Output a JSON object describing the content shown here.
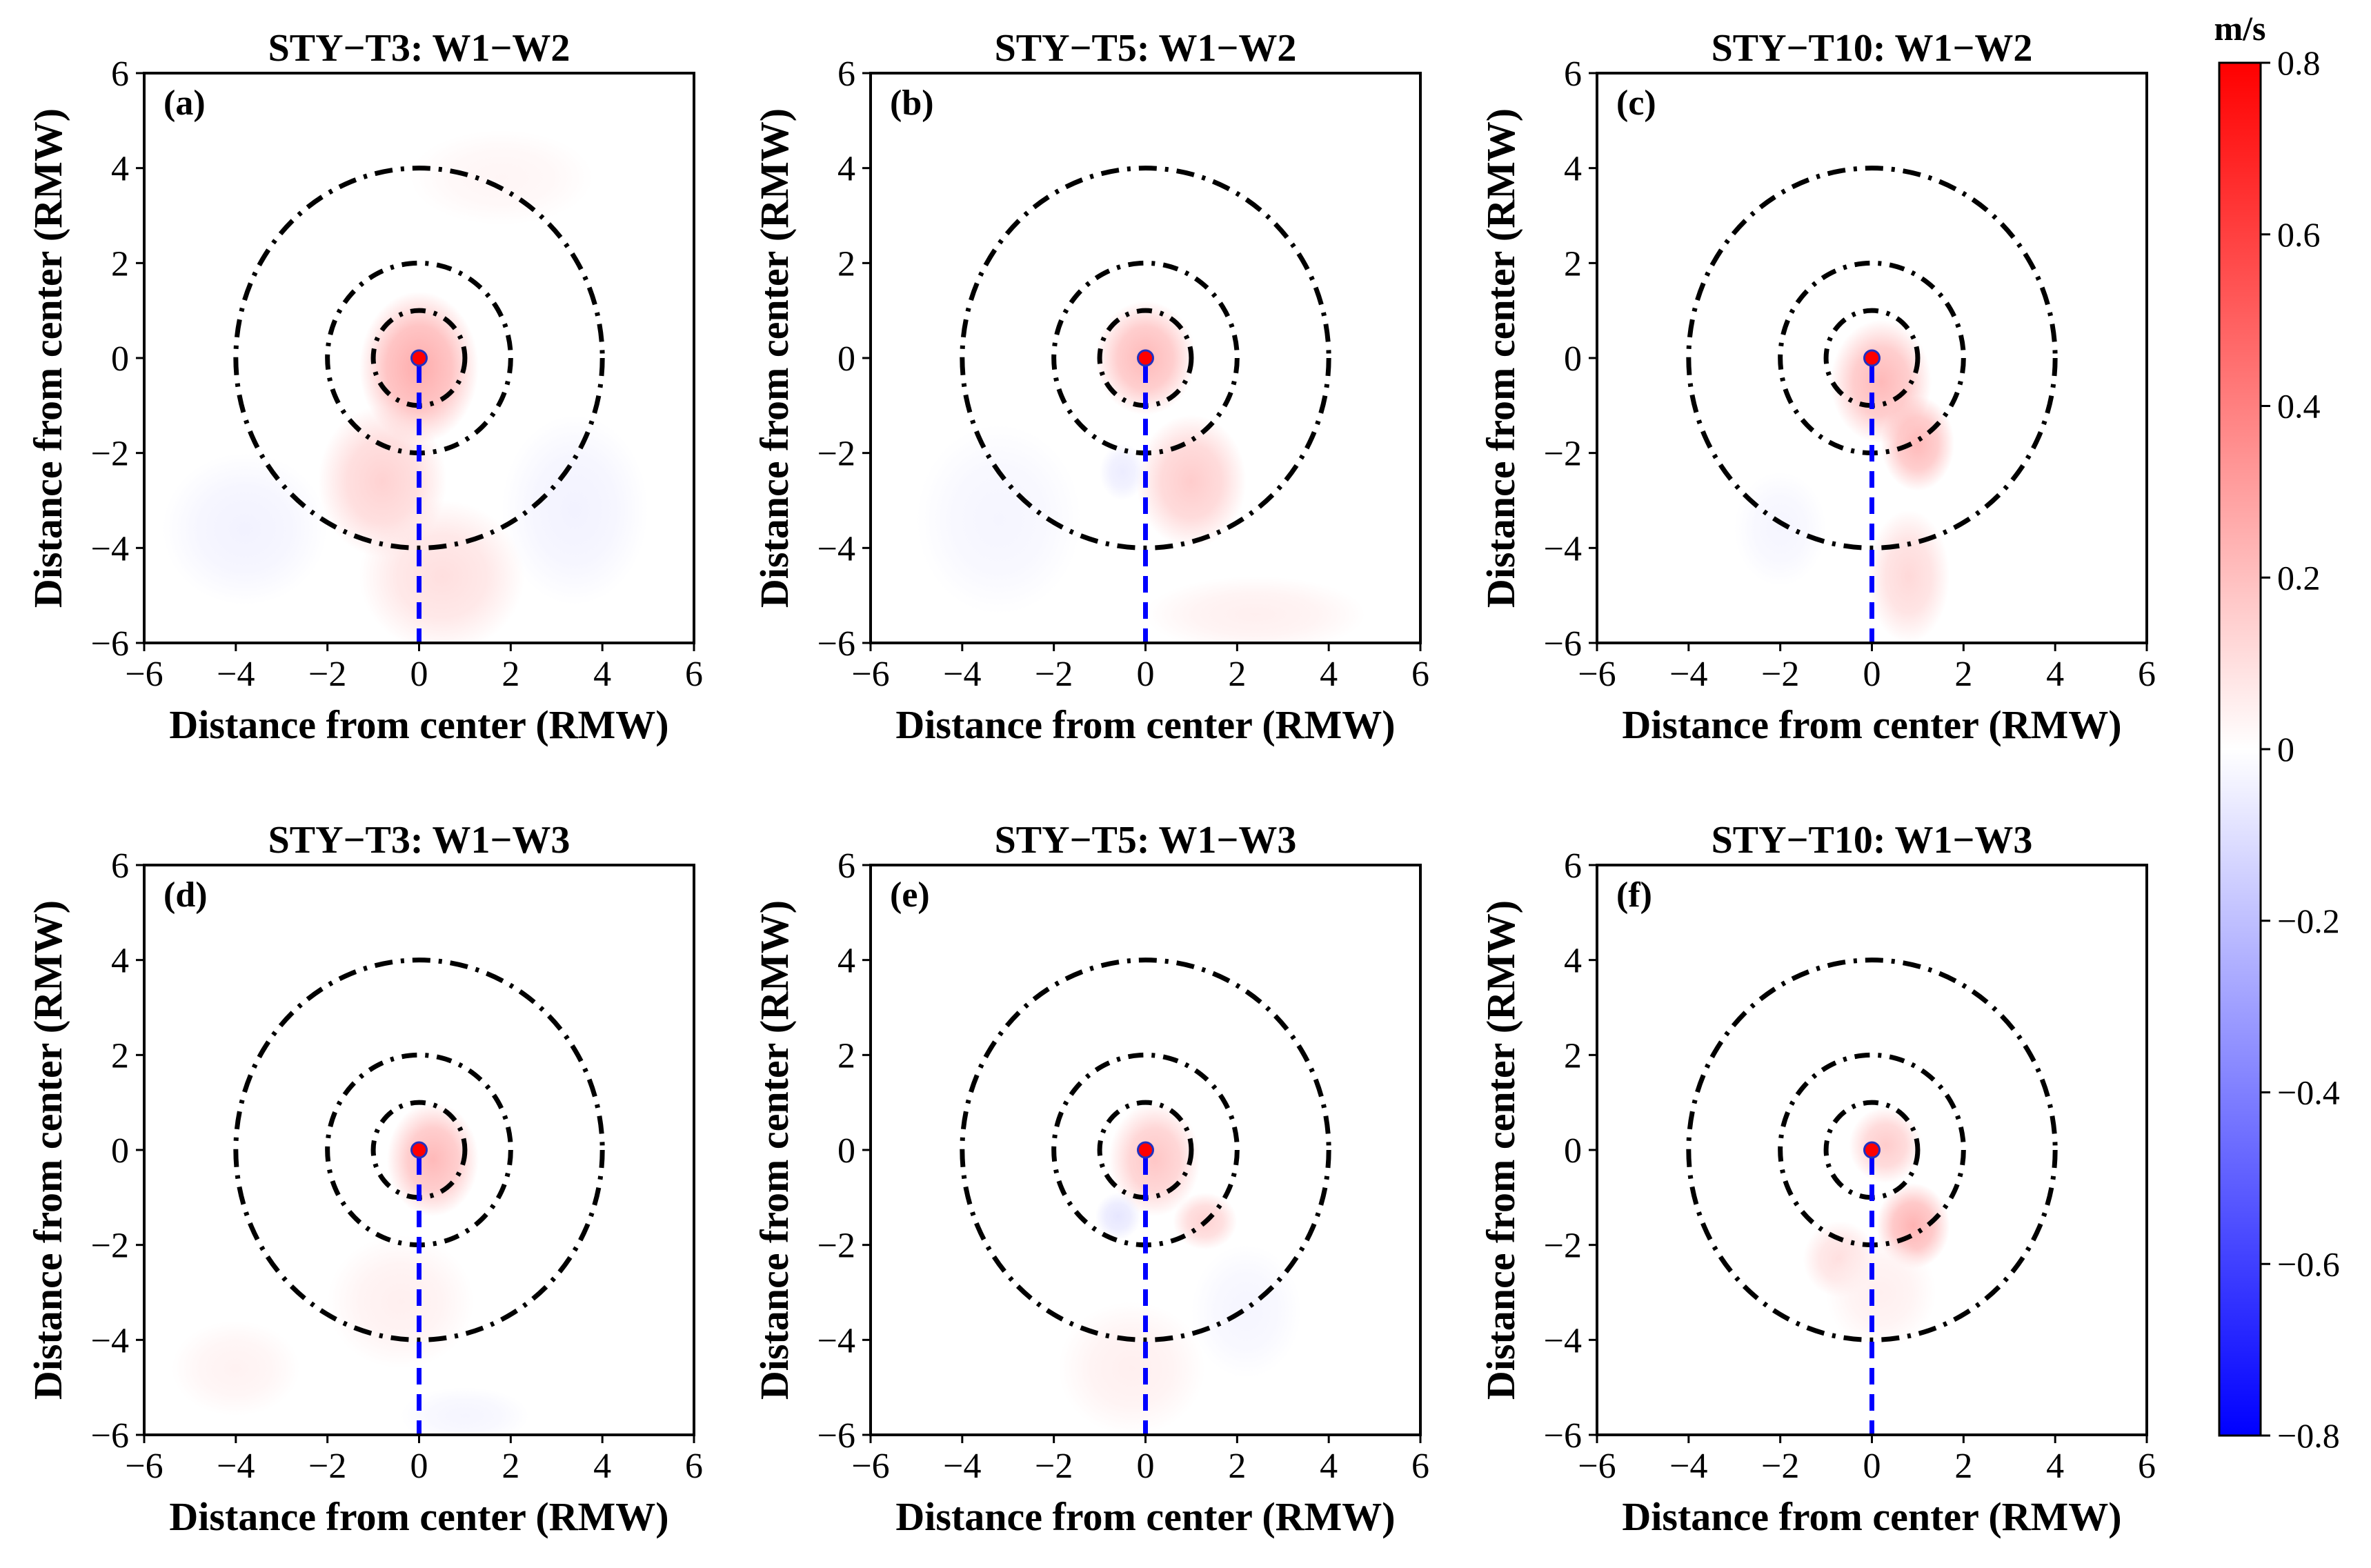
{
  "figure": {
    "colorbar": {
      "title": "m/s",
      "min": -0.8,
      "max": 0.8,
      "ticks": [
        0.8,
        0.6,
        0.4,
        0.2,
        0,
        -0.2,
        -0.4,
        -0.6,
        -0.8
      ],
      "tick_labels": [
        "0.8",
        "0.6",
        "0.4",
        "0.2",
        "0",
        "−0.2",
        "−0.4",
        "−0.6",
        "−0.8"
      ],
      "colors": {
        "max": "#ff0000",
        "mid": "#ffffff",
        "min": "#0000ff"
      }
    },
    "ring_color": "#000000",
    "section_line_color": "#0000ff",
    "center_marker_color": "#ff0000"
  },
  "chart_data": [
    {
      "type": "heatmap",
      "panel": "(a)",
      "title": "STY−T3: W1−W2",
      "xlabel": "Distance from center (RMW)",
      "ylabel": "Distance from center (RMW)",
      "xlim": [
        -6,
        6
      ],
      "ylim": [
        -6,
        6
      ],
      "xticks": [
        -6,
        -4,
        -2,
        0,
        2,
        4,
        6
      ],
      "yticks": [
        -6,
        -4,
        -2,
        0,
        2,
        4,
        6
      ],
      "xtick_labels": [
        "−6",
        "−4",
        "−2",
        "0",
        "2",
        "4",
        "6"
      ],
      "ytick_labels": [
        "−6",
        "−4",
        "−2",
        "0",
        "2",
        "4",
        "6"
      ],
      "rings_rmw": [
        1,
        2,
        4
      ],
      "center": [
        0,
        0
      ],
      "section_line": {
        "x": 0,
        "y_from": 0,
        "y_to": -6
      },
      "features": [
        {
          "cx": 0.0,
          "cy": -0.2,
          "sx": 1.3,
          "sy": 1.6,
          "value": 0.26
        },
        {
          "cx": -0.8,
          "cy": -2.6,
          "sx": 1.4,
          "sy": 1.6,
          "value": 0.14
        },
        {
          "cx": 0.5,
          "cy": -4.6,
          "sx": 1.8,
          "sy": 1.6,
          "value": 0.1
        },
        {
          "cx": -3.8,
          "cy": -3.6,
          "sx": 1.8,
          "sy": 1.6,
          "value": -0.04
        },
        {
          "cx": 3.4,
          "cy": -3.2,
          "sx": 1.6,
          "sy": 2.0,
          "value": -0.04
        },
        {
          "cx": 1.8,
          "cy": 3.8,
          "sx": 2.0,
          "sy": 1.0,
          "value": 0.03
        }
      ]
    },
    {
      "type": "heatmap",
      "panel": "(b)",
      "title": "STY−T5: W1−W2",
      "xlabel": "Distance from center (RMW)",
      "ylabel": "Distance from center (RMW)",
      "xlim": [
        -6,
        6
      ],
      "ylim": [
        -6,
        6
      ],
      "xticks": [
        -6,
        -4,
        -2,
        0,
        2,
        4,
        6
      ],
      "yticks": [
        -6,
        -4,
        -2,
        0,
        2,
        4,
        6
      ],
      "xtick_labels": [
        "−6",
        "−4",
        "−2",
        "0",
        "2",
        "4",
        "6"
      ],
      "ytick_labels": [
        "−6",
        "−4",
        "−2",
        "0",
        "2",
        "4",
        "6"
      ],
      "rings_rmw": [
        1,
        2,
        4
      ],
      "center": [
        0,
        0
      ],
      "section_line": {
        "x": 0,
        "y_from": 0,
        "y_to": -6
      },
      "features": [
        {
          "cx": 0.0,
          "cy": 0.0,
          "sx": 1.1,
          "sy": 1.2,
          "value": 0.22
        },
        {
          "cx": 1.0,
          "cy": -2.6,
          "sx": 1.2,
          "sy": 1.4,
          "value": 0.16
        },
        {
          "cx": -0.5,
          "cy": -2.4,
          "sx": 0.5,
          "sy": 0.6,
          "value": -0.06
        },
        {
          "cx": -3.2,
          "cy": -3.4,
          "sx": 1.8,
          "sy": 2.0,
          "value": -0.03
        },
        {
          "cx": 2.4,
          "cy": -5.4,
          "sx": 2.4,
          "sy": 0.8,
          "value": 0.05
        }
      ]
    },
    {
      "type": "heatmap",
      "panel": "(c)",
      "title": "STY−T10: W1−W2",
      "xlabel": "Distance from center (RMW)",
      "ylabel": "Distance from center (RMW)",
      "xlim": [
        -6,
        6
      ],
      "ylim": [
        -6,
        6
      ],
      "xticks": [
        -6,
        -4,
        -2,
        0,
        2,
        4,
        6
      ],
      "yticks": [
        -6,
        -4,
        -2,
        0,
        2,
        4,
        6
      ],
      "xtick_labels": [
        "−6",
        "−4",
        "−2",
        "0",
        "2",
        "4",
        "6"
      ],
      "ytick_labels": [
        "−6",
        "−4",
        "−2",
        "0",
        "2",
        "4",
        "6"
      ],
      "rings_rmw": [
        1,
        2,
        4
      ],
      "center": [
        0,
        0
      ],
      "section_line": {
        "x": 0,
        "y_from": 0,
        "y_to": -6
      },
      "features": [
        {
          "cx": 0.2,
          "cy": -0.5,
          "sx": 1.1,
          "sy": 1.3,
          "value": 0.22
        },
        {
          "cx": 1.0,
          "cy": -1.8,
          "sx": 0.8,
          "sy": 1.0,
          "value": 0.22
        },
        {
          "cx": 0.8,
          "cy": -4.6,
          "sx": 0.9,
          "sy": 1.4,
          "value": 0.12
        },
        {
          "cx": -2.0,
          "cy": -3.6,
          "sx": 1.0,
          "sy": 1.2,
          "value": -0.03
        }
      ]
    },
    {
      "type": "heatmap",
      "panel": "(d)",
      "title": "STY−T3: W1−W3",
      "xlabel": "Distance from center (RMW)",
      "ylabel": "Distance from center (RMW)",
      "xlim": [
        -6,
        6
      ],
      "ylim": [
        -6,
        6
      ],
      "xticks": [
        -6,
        -4,
        -2,
        0,
        2,
        4,
        6
      ],
      "yticks": [
        -6,
        -4,
        -2,
        0,
        2,
        4,
        6
      ],
      "xtick_labels": [
        "−6",
        "−4",
        "−2",
        "0",
        "2",
        "4",
        "6"
      ],
      "ytick_labels": [
        "−6",
        "−4",
        "−2",
        "0",
        "2",
        "4",
        "6"
      ],
      "rings_rmw": [
        1,
        2,
        4
      ],
      "center": [
        0,
        0
      ],
      "section_line": {
        "x": 0,
        "y_from": 0,
        "y_to": -6
      },
      "features": [
        {
          "cx": 0.3,
          "cy": -0.2,
          "sx": 1.0,
          "sy": 1.2,
          "value": 0.22
        },
        {
          "cx": -0.4,
          "cy": -3.2,
          "sx": 1.6,
          "sy": 1.4,
          "value": 0.05
        },
        {
          "cx": -4.0,
          "cy": -4.6,
          "sx": 1.4,
          "sy": 1.0,
          "value": 0.04
        },
        {
          "cx": 1.0,
          "cy": -5.6,
          "sx": 1.4,
          "sy": 0.6,
          "value": -0.03
        }
      ]
    },
    {
      "type": "heatmap",
      "panel": "(e)",
      "title": "STY−T5: W1−W3",
      "xlabel": "Distance from center (RMW)",
      "ylabel": "Distance from center (RMW)",
      "xlim": [
        -6,
        6
      ],
      "ylim": [
        -6,
        6
      ],
      "xticks": [
        -6,
        -4,
        -2,
        0,
        2,
        4,
        6
      ],
      "yticks": [
        -6,
        -4,
        -2,
        0,
        2,
        4,
        6
      ],
      "xtick_labels": [
        "−6",
        "−4",
        "−2",
        "0",
        "2",
        "4",
        "6"
      ],
      "ytick_labels": [
        "−6",
        "−4",
        "−2",
        "0",
        "2",
        "4",
        "6"
      ],
      "rings_rmw": [
        1,
        2,
        4
      ],
      "center": [
        0,
        0
      ],
      "section_line": {
        "x": 0,
        "y_from": 0,
        "y_to": -6
      },
      "features": [
        {
          "cx": 0.2,
          "cy": -0.2,
          "sx": 1.0,
          "sy": 1.2,
          "value": 0.18
        },
        {
          "cx": -0.6,
          "cy": -1.4,
          "sx": 0.5,
          "sy": 0.5,
          "value": -0.08
        },
        {
          "cx": 1.3,
          "cy": -1.5,
          "sx": 0.7,
          "sy": 0.6,
          "value": 0.14
        },
        {
          "cx": -0.3,
          "cy": -4.6,
          "sx": 1.6,
          "sy": 1.4,
          "value": 0.05
        },
        {
          "cx": 2.2,
          "cy": -3.4,
          "sx": 1.2,
          "sy": 1.4,
          "value": -0.03
        }
      ]
    },
    {
      "type": "heatmap",
      "panel": "(f)",
      "title": "STY−T10: W1−W3",
      "xlabel": "Distance from center (RMW)",
      "ylabel": "Distance from center (RMW)",
      "xlim": [
        -6,
        6
      ],
      "ylim": [
        -6,
        6
      ],
      "xticks": [
        -6,
        -4,
        -2,
        0,
        2,
        4,
        6
      ],
      "yticks": [
        -6,
        -4,
        -2,
        0,
        2,
        4,
        6
      ],
      "xtick_labels": [
        "−6",
        "−4",
        "−2",
        "0",
        "2",
        "4",
        "6"
      ],
      "ytick_labels": [
        "−6",
        "−4",
        "−2",
        "0",
        "2",
        "4",
        "6"
      ],
      "rings_rmw": [
        1,
        2,
        4
      ],
      "center": [
        0,
        0
      ],
      "section_line": {
        "x": 0,
        "y_from": 0,
        "y_to": -6
      },
      "features": [
        {
          "cx": 0.3,
          "cy": 0.1,
          "sx": 0.8,
          "sy": 0.8,
          "value": 0.16
        },
        {
          "cx": 0.9,
          "cy": -1.6,
          "sx": 0.8,
          "sy": 0.9,
          "value": 0.24
        },
        {
          "cx": -0.7,
          "cy": -2.3,
          "sx": 0.8,
          "sy": 0.8,
          "value": 0.1
        },
        {
          "cx": 0.2,
          "cy": -3.0,
          "sx": 1.2,
          "sy": 1.2,
          "value": 0.05
        }
      ]
    }
  ]
}
